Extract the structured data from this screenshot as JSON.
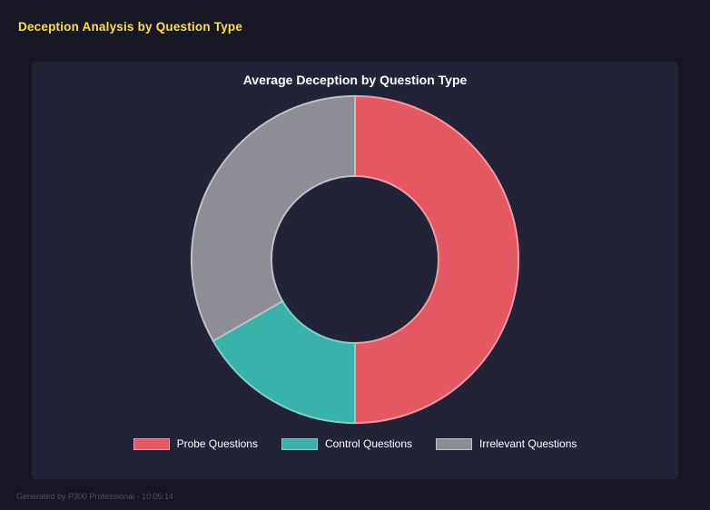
{
  "page": {
    "title": "Deception Analysis by Question Type",
    "footer": "Generated by P300 Professional - 10:05:14"
  },
  "colors": {
    "background": "#171723",
    "card": "#232338",
    "accent_yellow": "#ffe13b"
  },
  "chart_data": {
    "type": "pie",
    "variant": "doughnut",
    "title": "Average Deception by Question Type",
    "categories": [
      "Probe Questions",
      "Control Questions",
      "Irrelevant Questions"
    ],
    "values_percent": [
      50,
      16.7,
      33.3
    ],
    "colors": [
      "#e45864",
      "#38b2a9",
      "#8d8d95"
    ],
    "border_colors": [
      "#f59aa4",
      "#7fd0c9",
      "#c0c0c7"
    ],
    "cutout_percent": 50,
    "legend_position": "bottom",
    "start_angle_deg": 0,
    "direction": "clockwise",
    "grid": false
  }
}
